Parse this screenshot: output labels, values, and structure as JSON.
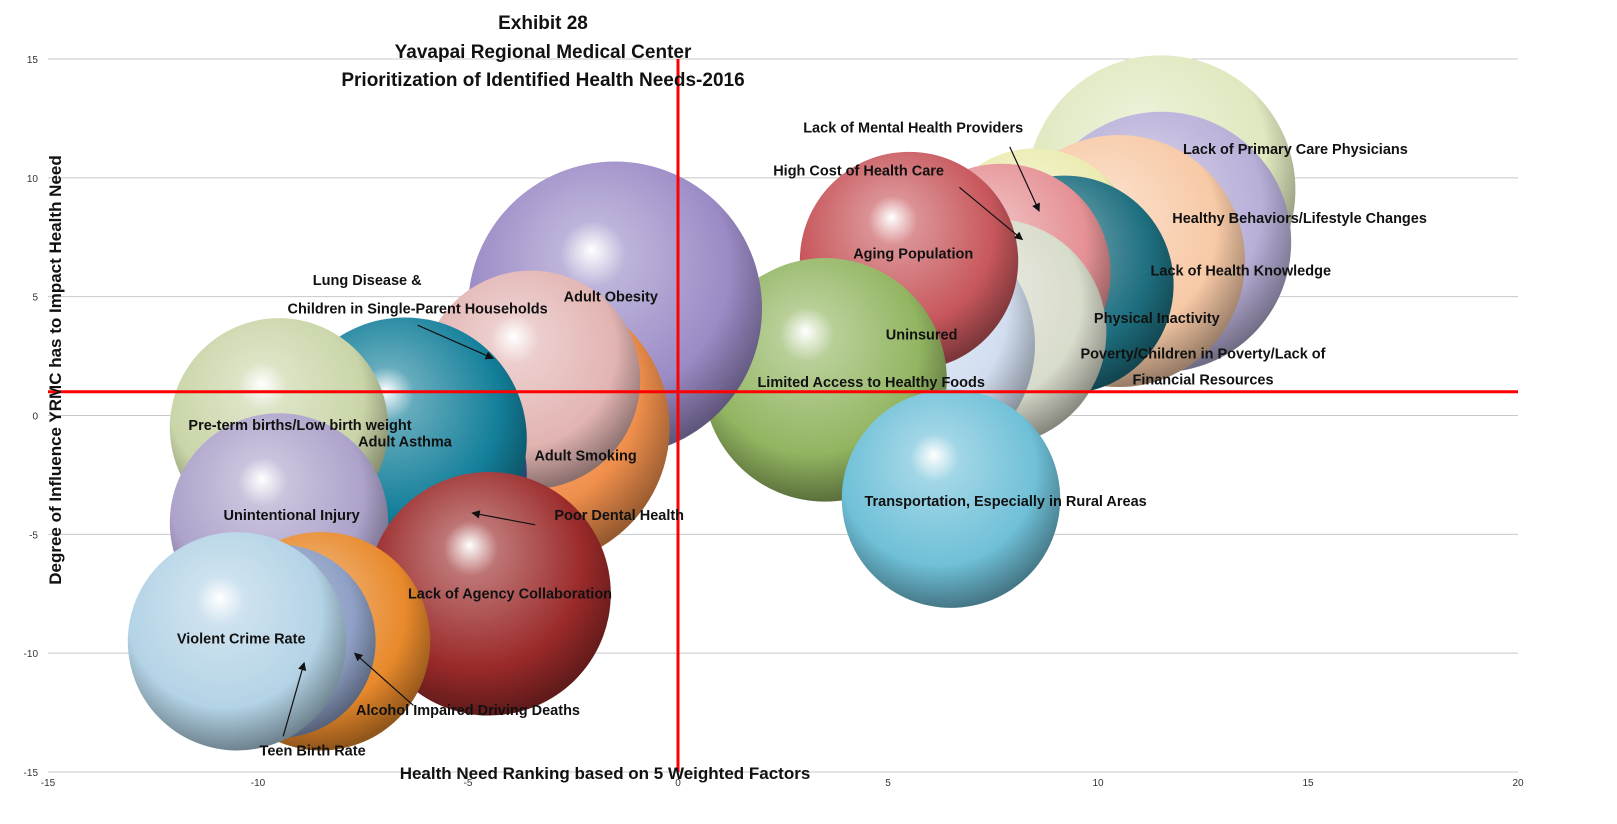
{
  "chart_data": {
    "type": "bubble",
    "title": [
      "Exhibit 28",
      "Yavapai Regional Medical Center",
      "Prioritization of Identified Health Needs-2016"
    ],
    "xlabel": "Health Need Ranking based on 5 Weighted Factors",
    "ylabel": "Degree of Influence YRMC has to Impact Health Need",
    "xlim": [
      -15,
      20
    ],
    "ylim": [
      -15,
      15
    ],
    "xticks": [
      "-15",
      "-10",
      "-5",
      "0",
      "5",
      "10",
      "15",
      "20"
    ],
    "yticks": [
      "15",
      "10",
      "5",
      "0",
      "-5",
      "-10",
      "-15"
    ],
    "grid": "horizontal",
    "reference_lines": {
      "x": 0,
      "y": 1,
      "color": "#ff0000"
    },
    "bubbles": [
      {
        "name": "Lack of Primary Care Physicians",
        "x": 11.5,
        "y": 9.5,
        "r": 3.2,
        "color": "#dfe8bf"
      },
      {
        "name": "Healthy Behaviors/Lifestyle Changes",
        "x": 11.5,
        "y": 7.3,
        "r": 3.1,
        "color": "#b8afd8"
      },
      {
        "name": "Lack of Health Knowledge",
        "x": 10.5,
        "y": 6.5,
        "r": 3.0,
        "color": "#f7c9a6"
      },
      {
        "name": "Lack of Mental Health Providers",
        "x": 8.5,
        "y": 7.0,
        "r": 2.4,
        "color": "#ebebb1"
      },
      {
        "name": "Physical Inactivity",
        "x": 9.2,
        "y": 5.5,
        "r": 2.6,
        "color": "#1e6f80"
      },
      {
        "name": "High Cost of Health Care",
        "x": 7.7,
        "y": 6.0,
        "r": 2.6,
        "color": "#e59195"
      },
      {
        "name": "Poverty/Children in Poverty/Lack of Financial Resources",
        "x": 7.5,
        "y": 3.5,
        "r": 2.7,
        "color": "#d8dccb"
      },
      {
        "name": "Uninsured",
        "x": 5.5,
        "y": 3.0,
        "r": 3.0,
        "color": "#d2def0"
      },
      {
        "name": "Aging Population",
        "x": 5.5,
        "y": 6.5,
        "r": 2.6,
        "color": "#c7575c"
      },
      {
        "name": "Limited Access to Healthy Foods",
        "x": 3.5,
        "y": 1.5,
        "r": 2.9,
        "color": "#92b561"
      },
      {
        "name": "Transportation, Especially in Rural Areas",
        "x": 6.5,
        "y": -3.5,
        "r": 2.6,
        "color": "#6fc0d8"
      },
      {
        "name": "Adult Obesity",
        "x": -1.5,
        "y": 4.5,
        "r": 3.5,
        "color": "#9b8bc6"
      },
      {
        "name": "Adult Smoking",
        "x": -3.5,
        "y": -0.5,
        "r": 3.3,
        "color": "#f08f4c"
      },
      {
        "name": "Lung Disease & Children in Single-Parent Households",
        "x": -3.5,
        "y": 1.5,
        "r": 2.6,
        "color": "#e2b4b2"
      },
      {
        "name": "Poor Dental Health",
        "x": -6.5,
        "y": -2.5,
        "r": 2.9,
        "color": "#2f5f9e"
      },
      {
        "name": "Adult Asthma",
        "x": -6.5,
        "y": -1.0,
        "r": 2.9,
        "color": "#137f9a"
      },
      {
        "name": "Pre-term births/Low birth weight",
        "x": -9.5,
        "y": -0.5,
        "r": 2.6,
        "color": "#c9d5a8"
      },
      {
        "name": "Unintentional Injury",
        "x": -9.5,
        "y": -4.5,
        "r": 2.6,
        "color": "#ada2ca"
      },
      {
        "name": "Lack of Agency Collaboration",
        "x": -4.5,
        "y": -7.5,
        "r": 2.9,
        "color": "#9b2a2a"
      },
      {
        "name": "Alcohol Impaired Driving Deaths",
        "x": -8.5,
        "y": -9.5,
        "r": 2.6,
        "color": "#e8892b"
      },
      {
        "name": "Teen Birth Rate",
        "x": -9.5,
        "y": -9.5,
        "r": 2.3,
        "color": "#8ea0c5"
      },
      {
        "name": "Violent Crime Rate",
        "x": -10.5,
        "y": -9.5,
        "r": 2.6,
        "color": "#b3d3e6"
      }
    ],
    "labels": [
      {
        "text": "Lack of Primary Care Physicians",
        "x": 14.7,
        "y": 11.0
      },
      {
        "text": "Healthy Behaviors/Lifestyle Changes",
        "x": 14.8,
        "y": 8.1
      },
      {
        "text": "Lack of Health Knowledge",
        "x": 13.4,
        "y": 5.9
      },
      {
        "text": "Physical Inactivity",
        "x": 11.4,
        "y": 3.9
      },
      {
        "text": "Lack of Mental Health Providers",
        "x": 5.6,
        "y": 11.9
      },
      {
        "text": "High Cost of Health Care",
        "x": 4.3,
        "y": 10.1
      },
      {
        "text": "Aging Population",
        "x": 5.6,
        "y": 6.6
      },
      {
        "text": "Uninsured",
        "x": 5.8,
        "y": 3.2
      },
      {
        "text": "Poverty/Children in Poverty/Lack of",
        "x": 12.5,
        "y": 2.4
      },
      {
        "text": "Financial Resources",
        "x": 12.5,
        "y": 1.3
      },
      {
        "text": "Limited Access to Healthy Foods",
        "x": 4.6,
        "y": 1.2
      },
      {
        "text": "Transportation, Especially in Rural Areas",
        "x": 7.8,
        "y": -3.8
      },
      {
        "text": "Adult Obesity",
        "x": -1.6,
        "y": 4.8
      },
      {
        "text": "Lung Disease &",
        "x": -7.4,
        "y": 5.5
      },
      {
        "text": "Children in Single-Parent Households",
        "x": -6.2,
        "y": 4.3
      },
      {
        "text": "Adult Smoking",
        "x": -2.2,
        "y": -1.9
      },
      {
        "text": "Pre-term births/Low birth weight",
        "x": -9.0,
        "y": -0.6
      },
      {
        "text": "Adult Asthma",
        "x": -6.5,
        "y": -1.3
      },
      {
        "text": "Poor Dental Health",
        "x": -1.4,
        "y": -4.4
      },
      {
        "text": "Unintentional Injury",
        "x": -9.2,
        "y": -4.4
      },
      {
        "text": "Lack of Agency Collaboration",
        "x": -4.0,
        "y": -7.7
      },
      {
        "text": "Violent Crime Rate",
        "x": -10.4,
        "y": -9.6
      },
      {
        "text": "Alcohol Impaired Driving Deaths",
        "x": -5.0,
        "y": -12.6
      },
      {
        "text": "Teen Birth Rate",
        "x": -8.7,
        "y": -14.3
      }
    ],
    "arrows": [
      {
        "from": [
          7.9,
          11.3
        ],
        "to": [
          8.6,
          8.6
        ]
      },
      {
        "from": [
          6.7,
          9.6
        ],
        "to": [
          8.2,
          7.4
        ]
      },
      {
        "from": [
          -6.2,
          3.8
        ],
        "to": [
          -4.4,
          2.4
        ]
      },
      {
        "from": [
          -3.4,
          -4.6
        ],
        "to": [
          -4.9,
          -4.1
        ]
      },
      {
        "from": [
          -6.3,
          -12.2
        ],
        "to": [
          -7.7,
          -10.0
        ]
      },
      {
        "from": [
          -9.4,
          -13.5
        ],
        "to": [
          -8.9,
          -10.4
        ]
      }
    ]
  }
}
